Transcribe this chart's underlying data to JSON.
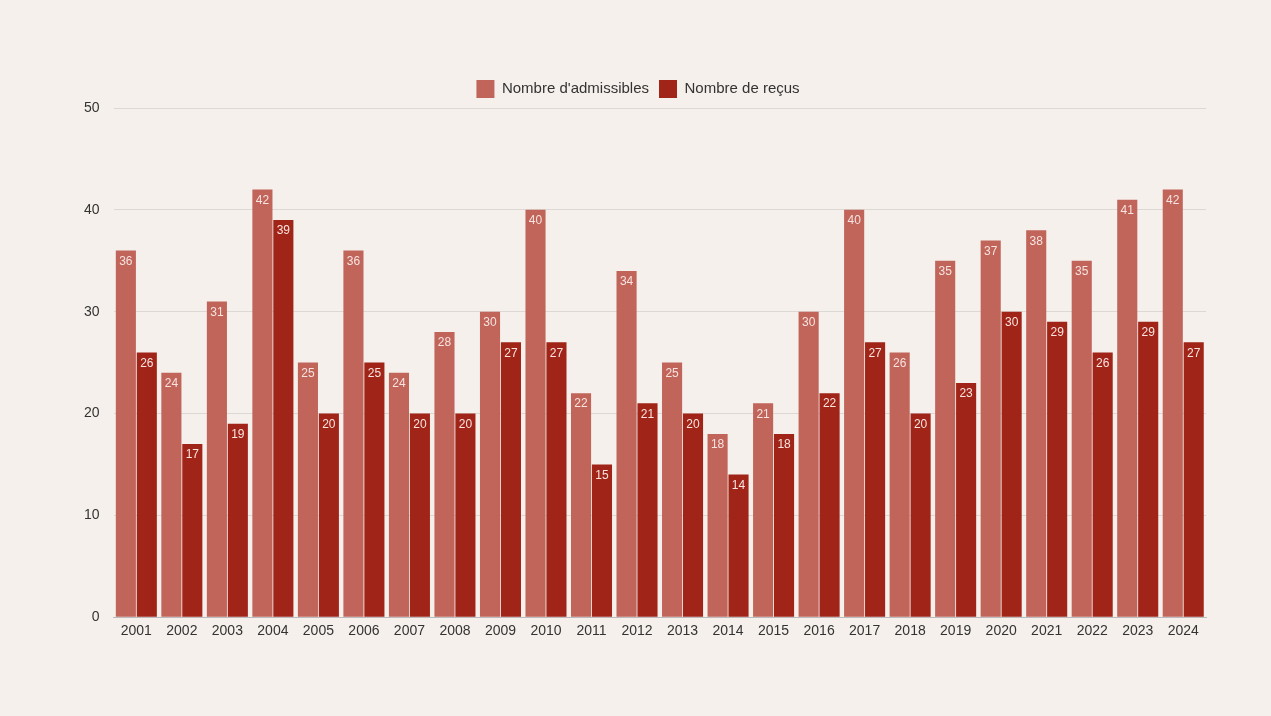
{
  "chart_data": {
    "type": "bar",
    "categories": [
      "2001",
      "2002",
      "2003",
      "2004",
      "2005",
      "2006",
      "2007",
      "2008",
      "2009",
      "2010",
      "2011",
      "2012",
      "2013",
      "2014",
      "2015",
      "2016",
      "2017",
      "2018",
      "2019",
      "2020",
      "2021",
      "2022",
      "2023",
      "2024"
    ],
    "series": [
      {
        "name": "Nombre d'admissibles",
        "color": "#c1645a",
        "values": [
          36,
          24,
          31,
          42,
          25,
          36,
          24,
          28,
          30,
          40,
          22,
          34,
          25,
          18,
          21,
          30,
          40,
          26,
          35,
          37,
          38,
          35,
          41,
          42
        ]
      },
      {
        "name": "Nombre de reçus",
        "color": "#a12418",
        "values": [
          26,
          17,
          19,
          39,
          20,
          25,
          20,
          20,
          27,
          27,
          15,
          21,
          20,
          14,
          18,
          22,
          27,
          20,
          23,
          30,
          29,
          26,
          29,
          27
        ]
      }
    ],
    "ylim": [
      0,
      50
    ],
    "yticks": [
      0,
      10,
      20,
      30,
      40,
      50
    ],
    "grid": "y",
    "legend": "top",
    "data_labels": true
  }
}
